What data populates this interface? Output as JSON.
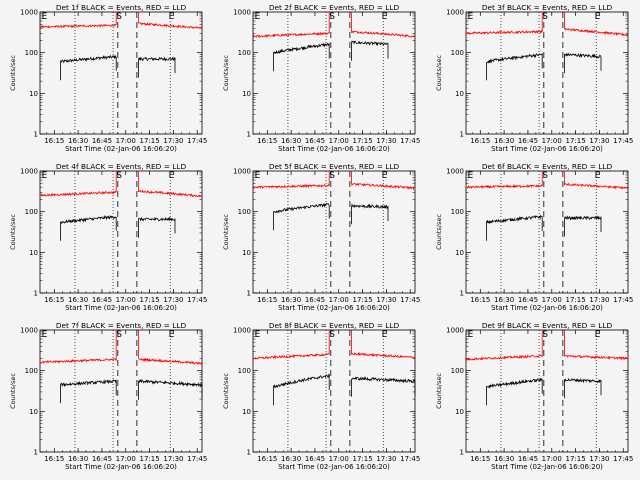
{
  "chart_data": [
    {
      "type": "line",
      "title": "Det 1f BLACK = Events, RED = LLD",
      "xlabel": "Start Time (02-Jan-06 16:06:20)",
      "ylabel": "Counts/sec",
      "yscale": "log",
      "ylim": [
        1,
        1000
      ],
      "xlim": [
        "16:06",
        "17:48"
      ],
      "xticks": [
        "16:15",
        "16:30",
        "16:45",
        "17:00",
        "17:15",
        "17:30",
        "17:45"
      ],
      "yticks": [
        "1",
        "10",
        "100",
        "1000"
      ],
      "markers": [
        "E",
        "S",
        "E"
      ],
      "series": [
        {
          "color": "#000000",
          "segments": [
            {
              "x": [
                "16:19",
                "16:54"
              ],
              "y": [
                60,
                80
              ]
            },
            {
              "x": [
                "17:08",
                "17:31"
              ],
              "y": [
                70,
                70
              ]
            }
          ]
        },
        {
          "color": "#ff0000",
          "segments": [
            {
              "x": [
                "16:06",
                "16:54"
              ],
              "y": [
                430,
                470
              ]
            },
            {
              "x": [
                "17:08",
                "17:48"
              ],
              "y": [
                520,
                400
              ]
            }
          ]
        }
      ]
    },
    {
      "type": "line",
      "title": "Det 2f BLACK = Events, RED = LLD",
      "xlabel": "Start Time (02-Jan-06 16:06:20)",
      "ylabel": "Counts/sec",
      "yscale": "log",
      "ylim": [
        1,
        1000
      ],
      "xlim": [
        "16:06",
        "17:48"
      ],
      "xticks": [
        "16:15",
        "16:30",
        "16:45",
        "17:00",
        "17:15",
        "17:30",
        "17:45"
      ],
      "yticks": [
        "1",
        "10",
        "100",
        "1000"
      ],
      "markers": [
        "E",
        "S",
        "E"
      ],
      "series": [
        {
          "color": "#000000",
          "segments": [
            {
              "x": [
                "16:19",
                "16:54"
              ],
              "y": [
                100,
                160
              ]
            },
            {
              "x": [
                "17:08",
                "17:31"
              ],
              "y": [
                180,
                160
              ]
            }
          ]
        },
        {
          "color": "#ff0000",
          "segments": [
            {
              "x": [
                "16:06",
                "16:54"
              ],
              "y": [
                250,
                300
              ]
            },
            {
              "x": [
                "17:08",
                "17:48"
              ],
              "y": [
                330,
                250
              ]
            }
          ]
        }
      ]
    },
    {
      "type": "line",
      "title": "Det 3f BLACK = Events, RED = LLD",
      "xlabel": "Start Time (02-Jan-06 16:06:20)",
      "ylabel": "Counts/sec",
      "yscale": "log",
      "ylim": [
        1,
        1000
      ],
      "xlim": [
        "16:06",
        "17:48"
      ],
      "xticks": [
        "16:15",
        "16:30",
        "16:45",
        "17:00",
        "17:15",
        "17:30",
        "17:45"
      ],
      "yticks": [
        "1",
        "10",
        "100",
        "1000"
      ],
      "markers": [
        "E",
        "S",
        "E"
      ],
      "series": [
        {
          "color": "#000000",
          "segments": [
            {
              "x": [
                "16:19",
                "16:54"
              ],
              "y": [
                60,
                90
              ]
            },
            {
              "x": [
                "17:08",
                "17:31"
              ],
              "y": [
                90,
                80
              ]
            }
          ]
        },
        {
          "color": "#ff0000",
          "segments": [
            {
              "x": [
                "16:06",
                "16:54"
              ],
              "y": [
                300,
                330
              ]
            },
            {
              "x": [
                "17:08",
                "17:48"
              ],
              "y": [
                380,
                270
              ]
            }
          ]
        }
      ]
    },
    {
      "type": "line",
      "title": "Det 4f BLACK = Events, RED = LLD",
      "xlabel": "Start Time (02-Jan-06 16:06:20)",
      "ylabel": "Counts/sec",
      "yscale": "log",
      "ylim": [
        1,
        1000
      ],
      "xlim": [
        "16:06",
        "17:48"
      ],
      "xticks": [
        "16:15",
        "16:30",
        "16:45",
        "17:00",
        "17:15",
        "17:30",
        "17:45"
      ],
      "yticks": [
        "1",
        "10",
        "100",
        "1000"
      ],
      "markers": [
        "E",
        "S",
        "E"
      ],
      "series": [
        {
          "color": "#000000",
          "segments": [
            {
              "x": [
                "16:19",
                "16:54"
              ],
              "y": [
                55,
                75
              ]
            },
            {
              "x": [
                "17:08",
                "17:31"
              ],
              "y": [
                65,
                65
              ]
            }
          ]
        },
        {
          "color": "#ff0000",
          "segments": [
            {
              "x": [
                "16:06",
                "16:54"
              ],
              "y": [
                250,
                300
              ]
            },
            {
              "x": [
                "17:08",
                "17:48"
              ],
              "y": [
                320,
                240
              ]
            }
          ]
        }
      ]
    },
    {
      "type": "line",
      "title": "Det 5f BLACK = Events, RED = LLD",
      "xlabel": "Start Time (02-Jan-06 16:06:20)",
      "ylabel": "Counts/sec",
      "yscale": "log",
      "ylim": [
        1,
        1000
      ],
      "xlim": [
        "16:06",
        "17:48"
      ],
      "xticks": [
        "16:15",
        "16:30",
        "16:45",
        "17:00",
        "17:15",
        "17:30",
        "17:45"
      ],
      "yticks": [
        "1",
        "10",
        "100",
        "1000"
      ],
      "markers": [
        "E",
        "S",
        "E"
      ],
      "series": [
        {
          "color": "#000000",
          "segments": [
            {
              "x": [
                "16:19",
                "16:54"
              ],
              "y": [
                100,
                150
              ]
            },
            {
              "x": [
                "17:08",
                "17:31"
              ],
              "y": [
                140,
                130
              ]
            }
          ]
        },
        {
          "color": "#ff0000",
          "segments": [
            {
              "x": [
                "16:06",
                "16:54"
              ],
              "y": [
                400,
                440
              ]
            },
            {
              "x": [
                "17:08",
                "17:48"
              ],
              "y": [
                480,
                380
              ]
            }
          ]
        }
      ]
    },
    {
      "type": "line",
      "title": "Det 6f BLACK = Events, RED = LLD",
      "xlabel": "Start Time (02-Jan-06 16:06:20)",
      "ylabel": "Counts/sec",
      "yscale": "log",
      "ylim": [
        1,
        1000
      ],
      "xlim": [
        "16:06",
        "17:48"
      ],
      "xticks": [
        "16:15",
        "16:30",
        "16:45",
        "17:00",
        "17:15",
        "17:30",
        "17:45"
      ],
      "yticks": [
        "1",
        "10",
        "100",
        "1000"
      ],
      "markers": [
        "E",
        "S",
        "E"
      ],
      "series": [
        {
          "color": "#000000",
          "segments": [
            {
              "x": [
                "16:19",
                "16:54"
              ],
              "y": [
                55,
                75
              ]
            },
            {
              "x": [
                "17:08",
                "17:31"
              ],
              "y": [
                70,
                70
              ]
            }
          ]
        },
        {
          "color": "#ff0000",
          "segments": [
            {
              "x": [
                "16:06",
                "16:54"
              ],
              "y": [
                400,
                430
              ]
            },
            {
              "x": [
                "17:08",
                "17:48"
              ],
              "y": [
                470,
                380
              ]
            }
          ]
        }
      ]
    },
    {
      "type": "line",
      "title": "Det 7f BLACK = Events, RED = LLD",
      "xlabel": "Start Time (02-Jan-06 16:06:20)",
      "ylabel": "Counts/sec",
      "yscale": "log",
      "ylim": [
        1,
        1000
      ],
      "xlim": [
        "16:06",
        "17:48"
      ],
      "xticks": [
        "16:15",
        "16:30",
        "16:45",
        "17:00",
        "17:15",
        "17:30",
        "17:45"
      ],
      "yticks": [
        "1",
        "10",
        "100",
        "1000"
      ],
      "markers": [
        "E",
        "S",
        "E"
      ],
      "series": [
        {
          "color": "#000000",
          "segments": [
            {
              "x": [
                "16:19",
                "16:54"
              ],
              "y": [
                45,
                55
              ]
            },
            {
              "x": [
                "17:08",
                "17:48"
              ],
              "y": [
                55,
                45
              ]
            }
          ]
        },
        {
          "color": "#ff0000",
          "segments": [
            {
              "x": [
                "16:06",
                "16:54"
              ],
              "y": [
                160,
                190
              ]
            },
            {
              "x": [
                "17:08",
                "17:48"
              ],
              "y": [
                190,
                150
              ]
            }
          ]
        }
      ]
    },
    {
      "type": "line",
      "title": "Det 8f BLACK = Events, RED = LLD",
      "xlabel": "Start Time (02-Jan-06 16:06:20)",
      "ylabel": "Counts/sec",
      "yscale": "log",
      "ylim": [
        1,
        1000
      ],
      "xlim": [
        "16:06",
        "17:48"
      ],
      "xticks": [
        "16:15",
        "16:30",
        "16:45",
        "17:00",
        "17:15",
        "17:30",
        "17:45"
      ],
      "yticks": [
        "1",
        "10",
        "100",
        "1000"
      ],
      "markers": [
        "E",
        "S",
        "E"
      ],
      "series": [
        {
          "color": "#000000",
          "segments": [
            {
              "x": [
                "16:19",
                "16:54"
              ],
              "y": [
                40,
                75
              ]
            },
            {
              "x": [
                "17:08",
                "17:48"
              ],
              "y": [
                65,
                55
              ]
            }
          ]
        },
        {
          "color": "#ff0000",
          "segments": [
            {
              "x": [
                "16:06",
                "16:54"
              ],
              "y": [
                200,
                250
              ]
            },
            {
              "x": [
                "17:08",
                "17:48"
              ],
              "y": [
                260,
                210
              ]
            }
          ]
        }
      ]
    },
    {
      "type": "line",
      "title": "Det 9f BLACK = Events, RED = LLD",
      "xlabel": "Start Time (02-Jan-06 16:06:20)",
      "ylabel": "Counts/sec",
      "yscale": "log",
      "ylim": [
        1,
        1000
      ],
      "xlim": [
        "16:06",
        "17:48"
      ],
      "xticks": [
        "16:15",
        "16:30",
        "16:45",
        "17:00",
        "17:15",
        "17:30",
        "17:45"
      ],
      "yticks": [
        "1",
        "10",
        "100",
        "1000"
      ],
      "markers": [
        "E",
        "S",
        "E"
      ],
      "series": [
        {
          "color": "#000000",
          "segments": [
            {
              "x": [
                "16:19",
                "16:54"
              ],
              "y": [
                40,
                60
              ]
            },
            {
              "x": [
                "17:08",
                "17:31"
              ],
              "y": [
                60,
                55
              ]
            }
          ]
        },
        {
          "color": "#ff0000",
          "segments": [
            {
              "x": [
                "16:06",
                "16:54"
              ],
              "y": [
                190,
                230
              ]
            },
            {
              "x": [
                "17:08",
                "17:48"
              ],
              "y": [
                230,
                200
              ]
            }
          ]
        }
      ]
    }
  ],
  "vertical_lines": {
    "dotted": [
      "16:28",
      "16:52",
      "17:28"
    ],
    "dashed": [
      "16:55",
      "17:07"
    ]
  },
  "colors": {
    "background": "#f4f4f4",
    "axes": "#000000",
    "events": "#000000",
    "lld": "#ff0000"
  }
}
